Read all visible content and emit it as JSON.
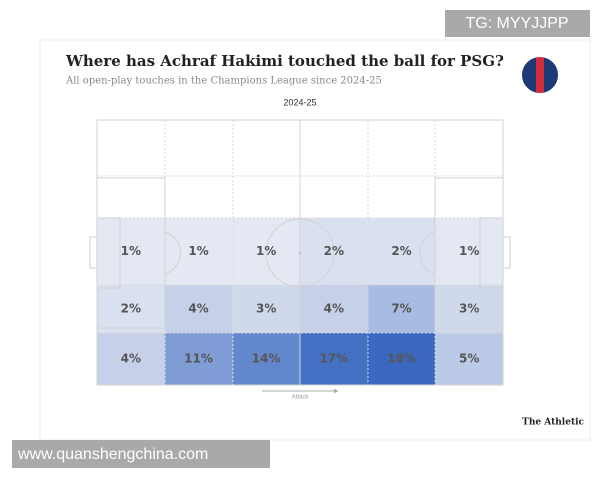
{
  "watermark": "TG: MYYJJPP",
  "footer_watermark": "www.quanshengchina.com",
  "chart_data": {
    "type": "heatmap",
    "title": "Where has Achraf Hakimi touched the ball for PSG?",
    "subtitle": "All open-play touches in the Champions League since 2024-25",
    "label": "2024-25",
    "direction_label": "Attack",
    "source": "The Athletic",
    "color": "#3a68c0",
    "series": [
      {
        "values": [
          1,
          1,
          1,
          2,
          2,
          1
        ],
        "value_labels": [
          "1%",
          "1%",
          "1%",
          "2%",
          "2%",
          "1%"
        ]
      },
      {
        "values": [
          2,
          4,
          3,
          4,
          7,
          3
        ],
        "value_labels": [
          "2%",
          "4%",
          "3%",
          "4%",
          "7%",
          "3%"
        ]
      },
      {
        "values": [
          4,
          11,
          14,
          17,
          18,
          5
        ],
        "value_labels": [
          "4%",
          "11%",
          "14%",
          "17%",
          "18%",
          "5%"
        ]
      }
    ]
  }
}
